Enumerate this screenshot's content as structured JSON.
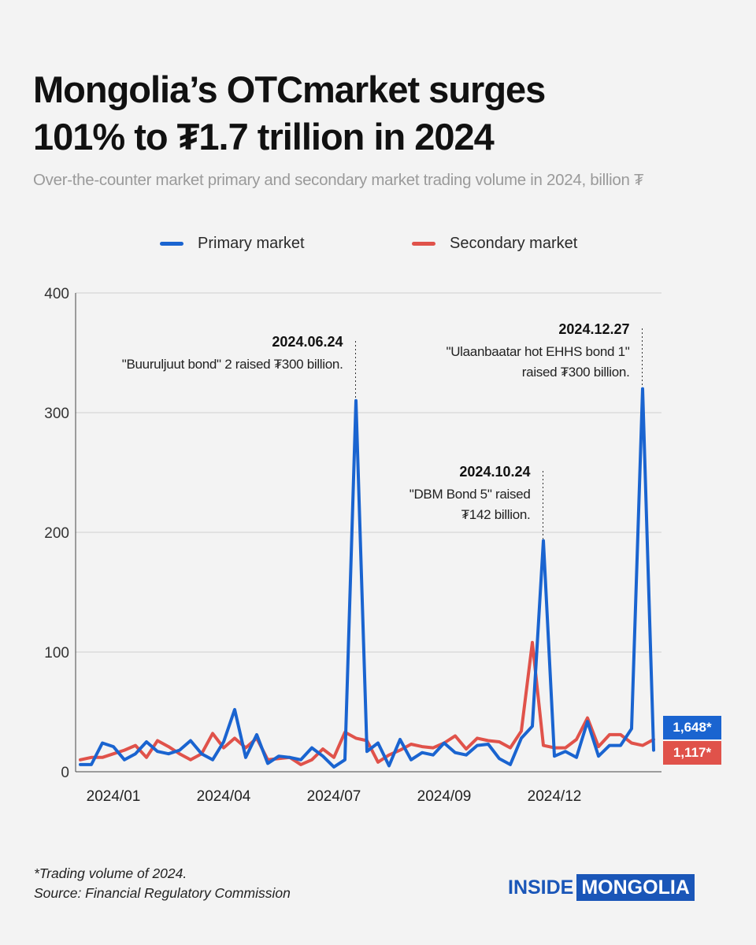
{
  "title_line1": "Mongolia’s OTCmarket surges",
  "title_line2": "101% to ₮1.7 trillion in 2024",
  "subtitle": "Over-the-counter market primary and secondary market trading volume in 2024, billion ₮",
  "footnote": "*Trading volume of 2024.",
  "source": "Source: Financial Regulatory Commission",
  "brand": {
    "part1": "INSIDE",
    "part2": "MONGOLIA"
  },
  "colors": {
    "primary": "#1a64d0",
    "secondary": "#e0524a",
    "brand": "#1a56b8"
  },
  "chart_data": {
    "type": "line",
    "ylim": [
      0,
      400
    ],
    "yticks": [
      0,
      100,
      200,
      300,
      400
    ],
    "xticks": [
      {
        "label": "2024/01",
        "index": 3
      },
      {
        "label": "2024/04",
        "index": 13
      },
      {
        "label": "2024/07",
        "index": 23
      },
      {
        "label": "2024/09",
        "index": 33
      },
      {
        "label": "2024/12",
        "index": 43
      }
    ],
    "grid": true,
    "legend_position": "top",
    "series": [
      {
        "name": "Primary market",
        "color": "#1a64d0",
        "values": [
          6,
          6,
          24,
          21,
          10,
          15,
          25,
          17,
          15,
          18,
          26,
          15,
          10,
          25,
          52,
          12,
          31,
          7,
          13,
          12,
          10,
          20,
          13,
          4,
          10,
          310,
          17,
          24,
          5,
          27,
          10,
          16,
          14,
          24,
          16,
          14,
          22,
          23,
          11,
          6,
          28,
          38,
          193,
          13,
          17,
          12,
          42,
          13,
          22,
          22,
          36,
          320,
          18
        ],
        "end_label": "1,648*"
      },
      {
        "name": "Secondary market",
        "color": "#e0524a",
        "values": [
          10,
          12,
          12,
          15,
          18,
          22,
          12,
          26,
          21,
          15,
          10,
          15,
          32,
          20,
          28,
          20,
          28,
          10,
          11,
          12,
          6,
          10,
          19,
          12,
          33,
          28,
          26,
          8,
          14,
          18,
          23,
          21,
          20,
          24,
          30,
          19,
          28,
          26,
          25,
          20,
          34,
          108,
          22,
          20,
          20,
          27,
          45,
          21,
          31,
          31,
          24,
          22,
          27
        ],
        "end_label": "1,117*"
      }
    ],
    "annotations": [
      {
        "date": "2024.06.24",
        "text_lines": [
          "\"Buuruljuut bond\" 2 raised ₮300 billion."
        ],
        "index": 25
      },
      {
        "date": "2024.10.24",
        "text_lines": [
          "\"DBM Bond 5\" raised",
          "₮142 billion."
        ],
        "index": 42
      },
      {
        "date": "2024.12.27",
        "text_lines": [
          "\"Ulaanbaatar hot EHHS bond 1\"",
          "raised ₮300 billion."
        ],
        "index": 51
      }
    ]
  }
}
